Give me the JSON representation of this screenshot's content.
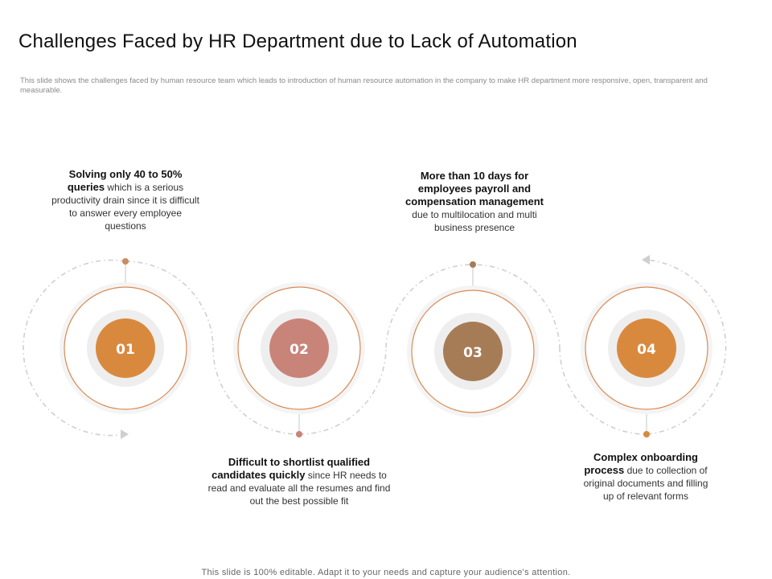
{
  "slide": {
    "title": "Challenges Faced by HR Department due to Lack of Automation",
    "subtitle": "This slide shows the challenges faced by human resource team which leads to introduction of human resource automation in the company to make HR department more responsive, open, transparent and measurable.",
    "footer": "This slide is 100% editable. Adapt it to your needs and capture your audience's attention."
  },
  "steps": [
    {
      "number": "01",
      "color": "#d9893e",
      "bold": "Solving only 40 to 50% queries",
      "text": " which is a serious productivity drain since it is difficult to answer every employee questions"
    },
    {
      "number": "02",
      "color": "#c9847a",
      "bold": "Difficult to shortlist qualified candidates quickly",
      "text": " since HR needs to read and evaluate all the resumes and find out the best possible fit"
    },
    {
      "number": "03",
      "color": "#a67c57",
      "bold": "More than 10 days for employees payroll and compensation management",
      "text": " due to multilocation and multi business presence"
    },
    {
      "number": "04",
      "color": "#d9893e",
      "bold": "Complex onboarding process",
      "text": " due to collection of original documents and filling up of relevant forms"
    }
  ]
}
